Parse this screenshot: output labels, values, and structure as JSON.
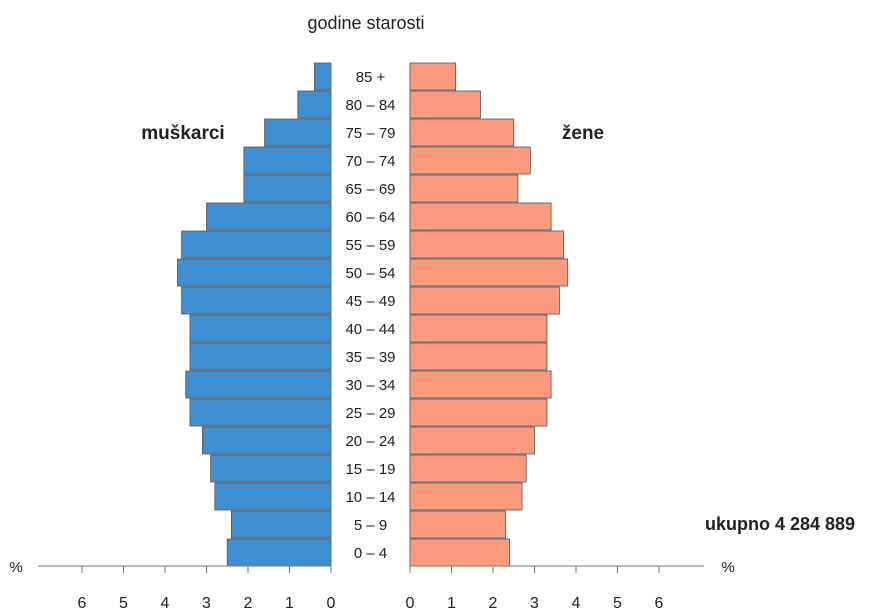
{
  "chart_data": {
    "type": "bar",
    "orientation": "horizontal",
    "title": "godine starosti",
    "categories": [
      "0 – 4",
      "5 – 9",
      "10 – 14",
      "15 – 19",
      "20 – 24",
      "25 – 29",
      "30 – 34",
      "35 – 39",
      "40 – 44",
      "45 – 49",
      "50 – 54",
      "55 – 59",
      "60 – 64",
      "65 – 69",
      "70 – 74",
      "75 – 79",
      "80 – 84",
      "85 +"
    ],
    "series": [
      {
        "name": "muškarci",
        "color": "#3f8fd2",
        "values": [
          2.5,
          2.4,
          2.8,
          2.9,
          3.1,
          3.4,
          3.5,
          3.4,
          3.4,
          3.6,
          3.7,
          3.6,
          3.0,
          2.1,
          2.1,
          1.6,
          0.8,
          0.4
        ]
      },
      {
        "name": "žene",
        "color": "#fb9a7f",
        "values": [
          2.4,
          2.3,
          2.7,
          2.8,
          3.0,
          3.3,
          3.4,
          3.3,
          3.3,
          3.6,
          3.8,
          3.7,
          3.4,
          2.6,
          2.9,
          2.5,
          1.7,
          1.1
        ]
      }
    ],
    "total_label": "ukupno 4 284 889",
    "x_unit": "%",
    "xlim": [
      0,
      6
    ],
    "x_ticks": [
      "0",
      "1",
      "2",
      "3",
      "4",
      "5",
      "6"
    ],
    "grid": false,
    "edge_color": "#555555"
  }
}
